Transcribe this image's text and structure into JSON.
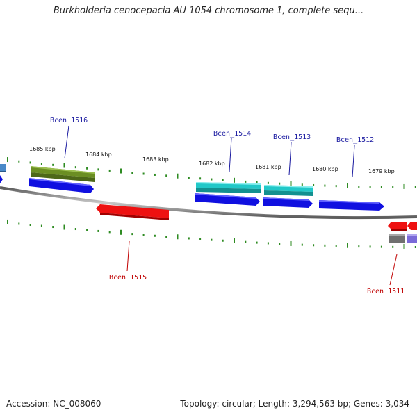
{
  "title": "Burkholderia cenocepacia AU 1054 chromosome 1, complete sequ...",
  "footer": {
    "accession": "Accession: NC_008060",
    "summary": "Topology: circular; Length: 3,294,563 bp; Genes: 3,034"
  },
  "scale_labels": [
    "1685 kbp",
    "1684 kbp",
    "1683 kbp",
    "1682 kbp",
    "1681 kbp",
    "1680 kbp",
    "1679 kbp"
  ],
  "gene_labels": [
    {
      "text": "Bcen_1516",
      "strand": "forward"
    },
    {
      "text": "Bcen_1514",
      "strand": "forward"
    },
    {
      "text": "Bcen_1513",
      "strand": "forward"
    },
    {
      "text": "Bcen_1512",
      "strand": "forward"
    },
    {
      "text": "Bcen_1515",
      "strand": "reverse"
    },
    {
      "text": "Bcen_1511",
      "strand": "reverse"
    }
  ],
  "colors": {
    "forward_label": "#1a1aa0",
    "reverse_label": "#c00000",
    "tick": "#2e8b22",
    "backbone": "#8a8a8a",
    "cds_forward": "#1010e0",
    "cds_reverse": "#ee1111",
    "feature_olive": "#6b8e23",
    "feature_cyan": "#22c8c8",
    "feature_gray": "#707070",
    "feature_purple": "#7a6ad8",
    "feature_steelblue": "#4a8ac8"
  }
}
